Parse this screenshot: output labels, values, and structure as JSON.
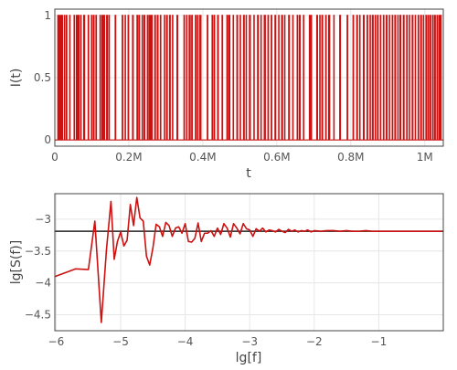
{
  "colors": {
    "series": "#cc1111",
    "reference": "#222222",
    "grid": "#e6e6e6"
  },
  "chart_data": [
    {
      "type": "line",
      "xlabel": "t",
      "ylabel": "I(t)",
      "xlim": [
        0,
        1050000
      ],
      "ylim": [
        -0.05,
        1.05
      ],
      "x_ticks": [
        0,
        200000,
        400000,
        600000,
        800000,
        1000000
      ],
      "x_tick_labels": [
        "0",
        "0.2M",
        "0.4M",
        "0.6M",
        "0.8M",
        "1M"
      ],
      "y_ticks": [
        0,
        0.5,
        1
      ],
      "y_tick_labels": [
        "0",
        "0.5",
        "1"
      ],
      "grid": true,
      "series": [
        {
          "description": "telegraph signal switching between 0 and 1; on-intervals [start, end] in t",
          "on_intervals": [
            [
              8000,
              9500
            ],
            [
              12000,
              13000
            ],
            [
              15500,
              17000
            ],
            [
              19000,
              21000
            ],
            [
              26000,
              27000
            ],
            [
              31000,
              32500
            ],
            [
              40000,
              41000
            ],
            [
              52000,
              53000
            ],
            [
              58000,
              60000
            ],
            [
              63000,
              65500
            ],
            [
              70000,
              71000
            ],
            [
              78000,
              80500
            ],
            [
              90000,
              91500
            ],
            [
              99000,
              100000
            ],
            [
              104000,
              106000
            ],
            [
              111000,
              112500
            ],
            [
              122000,
              123000
            ],
            [
              127000,
              130000
            ],
            [
              133000,
              134500
            ],
            [
              140000,
              142000
            ],
            [
              146000,
              147500
            ],
            [
              163000,
              164500
            ],
            [
              182000,
              183500
            ],
            [
              190000,
              191000
            ],
            [
              198000,
              199500
            ],
            [
              210000,
              212000
            ],
            [
              222000,
              223500
            ],
            [
              227000,
              229000
            ],
            [
              236000,
              237000
            ],
            [
              241000,
              243000
            ],
            [
              250000,
              251500
            ],
            [
              255000,
              256000
            ],
            [
              258000,
              259500
            ],
            [
              262000,
              263000
            ],
            [
              270000,
              272000
            ],
            [
              277000,
              279000
            ],
            [
              285000,
              286500
            ],
            [
              296000,
              297000
            ],
            [
              302000,
              304000
            ],
            [
              310000,
              312000
            ],
            [
              318000,
              319000
            ],
            [
              330000,
              332000
            ],
            [
              349000,
              350500
            ],
            [
              356000,
              357000
            ],
            [
              363000,
              366000
            ],
            [
              370000,
              371500
            ],
            [
              380000,
              382000
            ],
            [
              386000,
              387000
            ],
            [
              392000,
              395000
            ],
            [
              412000,
              413500
            ],
            [
              425000,
              427000
            ],
            [
              431000,
              432000
            ],
            [
              440000,
              442000
            ],
            [
              452000,
              453500
            ],
            [
              465000,
              466500
            ],
            [
              470000,
              473000
            ],
            [
              482000,
              483000
            ],
            [
              492000,
              494000
            ],
            [
              501000,
              502000
            ],
            [
              510000,
              512000
            ],
            [
              517000,
              518000
            ],
            [
              526000,
              528500
            ],
            [
              538000,
              539000
            ],
            [
              548000,
              550000
            ],
            [
              557000,
              558000
            ],
            [
              566000,
              569000
            ],
            [
              576000,
              577500
            ],
            [
              585000,
              586500
            ],
            [
              595000,
              597000
            ],
            [
              605000,
              606000
            ],
            [
              613000,
              615500
            ],
            [
              621000,
              622000
            ],
            [
              632000,
              634000
            ],
            [
              643000,
              644000
            ],
            [
              655000,
              656500
            ],
            [
              661000,
              663000
            ],
            [
              672000,
              673000
            ],
            [
              688000,
              690000
            ],
            [
              693000,
              694000
            ],
            [
              708000,
              710000
            ],
            [
              716000,
              717000
            ],
            [
              722000,
              724000
            ],
            [
              732000,
              733500
            ],
            [
              740000,
              743000
            ],
            [
              754000,
              755000
            ],
            [
              770000,
              772000
            ],
            [
              790000,
              791500
            ],
            [
              806000,
              807500
            ],
            [
              816000,
              818000
            ],
            [
              824000,
              825000
            ],
            [
              834000,
              836000
            ],
            [
              844000,
              845500
            ],
            [
              852000,
              853000
            ],
            [
              858000,
              860500
            ],
            [
              866000,
              867000
            ],
            [
              872000,
              874000
            ],
            [
              880000,
              881000
            ],
            [
              888000,
              889500
            ],
            [
              896000,
              898000
            ],
            [
              904000,
              905000
            ],
            [
              912000,
              913500
            ],
            [
              919000,
              921000
            ],
            [
              927000,
              928000
            ],
            [
              933000,
              935000
            ],
            [
              942000,
              944000
            ],
            [
              951000,
              952500
            ],
            [
              958000,
              959000
            ],
            [
              966000,
              968000
            ],
            [
              974000,
              975000
            ],
            [
              982000,
              983500
            ],
            [
              989000,
              991000
            ],
            [
              996000,
              997000
            ],
            [
              1003000,
              1005000
            ],
            [
              1009000,
              1010000
            ],
            [
              1014000,
              1016000
            ],
            [
              1021000,
              1022000
            ],
            [
              1026000,
              1028500
            ],
            [
              1033000,
              1034000
            ],
            [
              1038000,
              1040000
            ],
            [
              1043000,
              1044000
            ]
          ]
        }
      ]
    },
    {
      "type": "line",
      "xlabel": "lg[f]",
      "ylabel": "lg[S(f)]",
      "xlim": [
        -6.02,
        0
      ],
      "ylim": [
        -4.75,
        -2.6
      ],
      "x_ticks": [
        -6,
        -5,
        -4,
        -3,
        -2,
        -1
      ],
      "x_tick_labels": [
        "−6",
        "−5",
        "−4",
        "−3",
        "−2",
        "−1"
      ],
      "y_ticks": [
        -4.5,
        -4,
        -3.5,
        -3
      ],
      "y_tick_labels": [
        "−4.5",
        "−4",
        "−3.5",
        "−3"
      ],
      "grid": true,
      "reference_line_y": -3.19,
      "series": [
        {
          "x": [
            -6.02,
            -5.7,
            -5.5,
            -5.4,
            -5.3,
            -5.22,
            -5.15,
            -5.1,
            -5.05,
            -5.0,
            -4.95,
            -4.9,
            -4.85,
            -4.8,
            -4.75,
            -4.7,
            -4.65,
            -4.6,
            -4.55,
            -4.5,
            -4.45,
            -4.4,
            -4.35,
            -4.3,
            -4.25,
            -4.2,
            -4.15,
            -4.1,
            -4.05,
            -4.0,
            -3.95,
            -3.9,
            -3.85,
            -3.8,
            -3.75,
            -3.7,
            -3.65,
            -3.6,
            -3.55,
            -3.5,
            -3.45,
            -3.4,
            -3.35,
            -3.3,
            -3.25,
            -3.2,
            -3.15,
            -3.1,
            -3.05,
            -3.0,
            -2.95,
            -2.9,
            -2.85,
            -2.8,
            -2.75,
            -2.7,
            -2.65,
            -2.6,
            -2.55,
            -2.5,
            -2.45,
            -2.4,
            -2.35,
            -2.3,
            -2.25,
            -2.2,
            -2.15,
            -2.1,
            -2.05,
            -2.0,
            -1.9,
            -1.8,
            -1.7,
            -1.6,
            -1.5,
            -1.4,
            -1.3,
            -1.2,
            -1.1,
            -1.0,
            -0.8,
            -0.6,
            -0.4,
            -0.2,
            -0.02
          ],
          "y": [
            -3.9,
            -3.78,
            -3.79,
            -3.03,
            -4.62,
            -3.48,
            -2.72,
            -3.63,
            -3.35,
            -3.2,
            -3.42,
            -3.33,
            -2.77,
            -3.1,
            -2.66,
            -2.98,
            -3.03,
            -3.58,
            -3.72,
            -3.45,
            -3.08,
            -3.12,
            -3.27,
            -3.05,
            -3.1,
            -3.27,
            -3.14,
            -3.12,
            -3.22,
            -3.07,
            -3.35,
            -3.36,
            -3.3,
            -3.06,
            -3.35,
            -3.22,
            -3.22,
            -3.18,
            -3.27,
            -3.14,
            -3.24,
            -3.07,
            -3.14,
            -3.28,
            -3.07,
            -3.14,
            -3.23,
            -3.07,
            -3.15,
            -3.17,
            -3.27,
            -3.15,
            -3.19,
            -3.14,
            -3.2,
            -3.17,
            -3.18,
            -3.2,
            -3.16,
            -3.19,
            -3.21,
            -3.16,
            -3.19,
            -3.17,
            -3.2,
            -3.18,
            -3.19,
            -3.17,
            -3.2,
            -3.18,
            -3.19,
            -3.18,
            -3.18,
            -3.19,
            -3.18,
            -3.19,
            -3.19,
            -3.18,
            -3.19,
            -3.19,
            -3.19,
            -3.19,
            -3.19,
            -3.19,
            -3.19
          ]
        }
      ]
    }
  ]
}
